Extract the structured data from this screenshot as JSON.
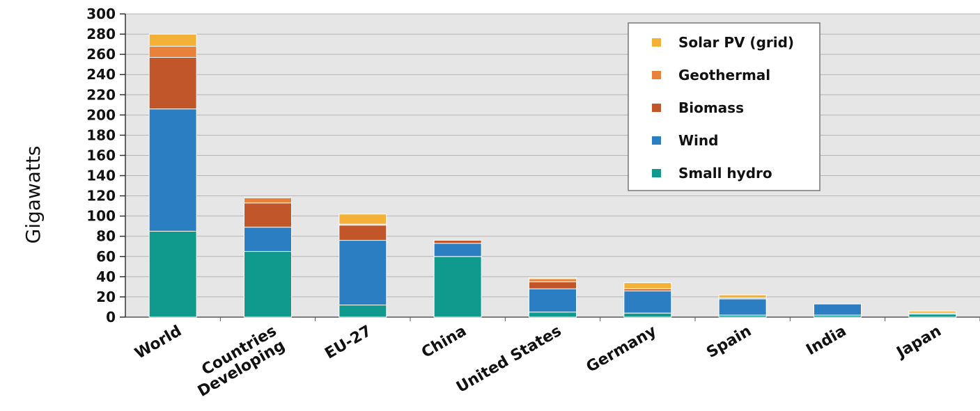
{
  "chart_data": {
    "type": "bar",
    "stacked": true,
    "title": "",
    "xlabel": "",
    "ylabel": "Gigawatts",
    "ylim": [
      0,
      300
    ],
    "yticks": [
      0,
      20,
      40,
      60,
      80,
      100,
      120,
      140,
      160,
      180,
      200,
      220,
      240,
      260,
      280,
      300
    ],
    "grid": true,
    "legend_position": "top-right",
    "categories": [
      [
        "World"
      ],
      [
        "Developing",
        "Countries"
      ],
      [
        "EU-27"
      ],
      [
        "China"
      ],
      [
        "United States"
      ],
      [
        "Germany"
      ],
      [
        "Spain"
      ],
      [
        "India"
      ],
      [
        "Japan"
      ]
    ],
    "series": [
      {
        "name": "Small hydro",
        "color": "#0f9a8d",
        "values": [
          85,
          65,
          12,
          60,
          5,
          4,
          2,
          2,
          3
        ]
      },
      {
        "name": "Wind",
        "color": "#2b7ec1",
        "values": [
          121,
          24,
          64,
          13,
          23,
          22,
          16,
          11,
          1
        ]
      },
      {
        "name": "Biomass",
        "color": "#c0562a",
        "values": [
          51,
          24,
          15,
          3,
          7,
          2,
          1,
          0,
          0
        ]
      },
      {
        "name": "Geothermal",
        "color": "#e8823a",
        "values": [
          11,
          5,
          1,
          0,
          3,
          0,
          0,
          0,
          0
        ]
      },
      {
        "name": "Solar PV (grid)",
        "color": "#f3b237",
        "values": [
          12,
          1,
          10,
          0,
          1,
          6,
          3,
          0,
          2
        ]
      }
    ],
    "legend_order": [
      "Solar PV (grid)",
      "Geothermal",
      "Biomass",
      "Wind",
      "Small hydro"
    ]
  }
}
